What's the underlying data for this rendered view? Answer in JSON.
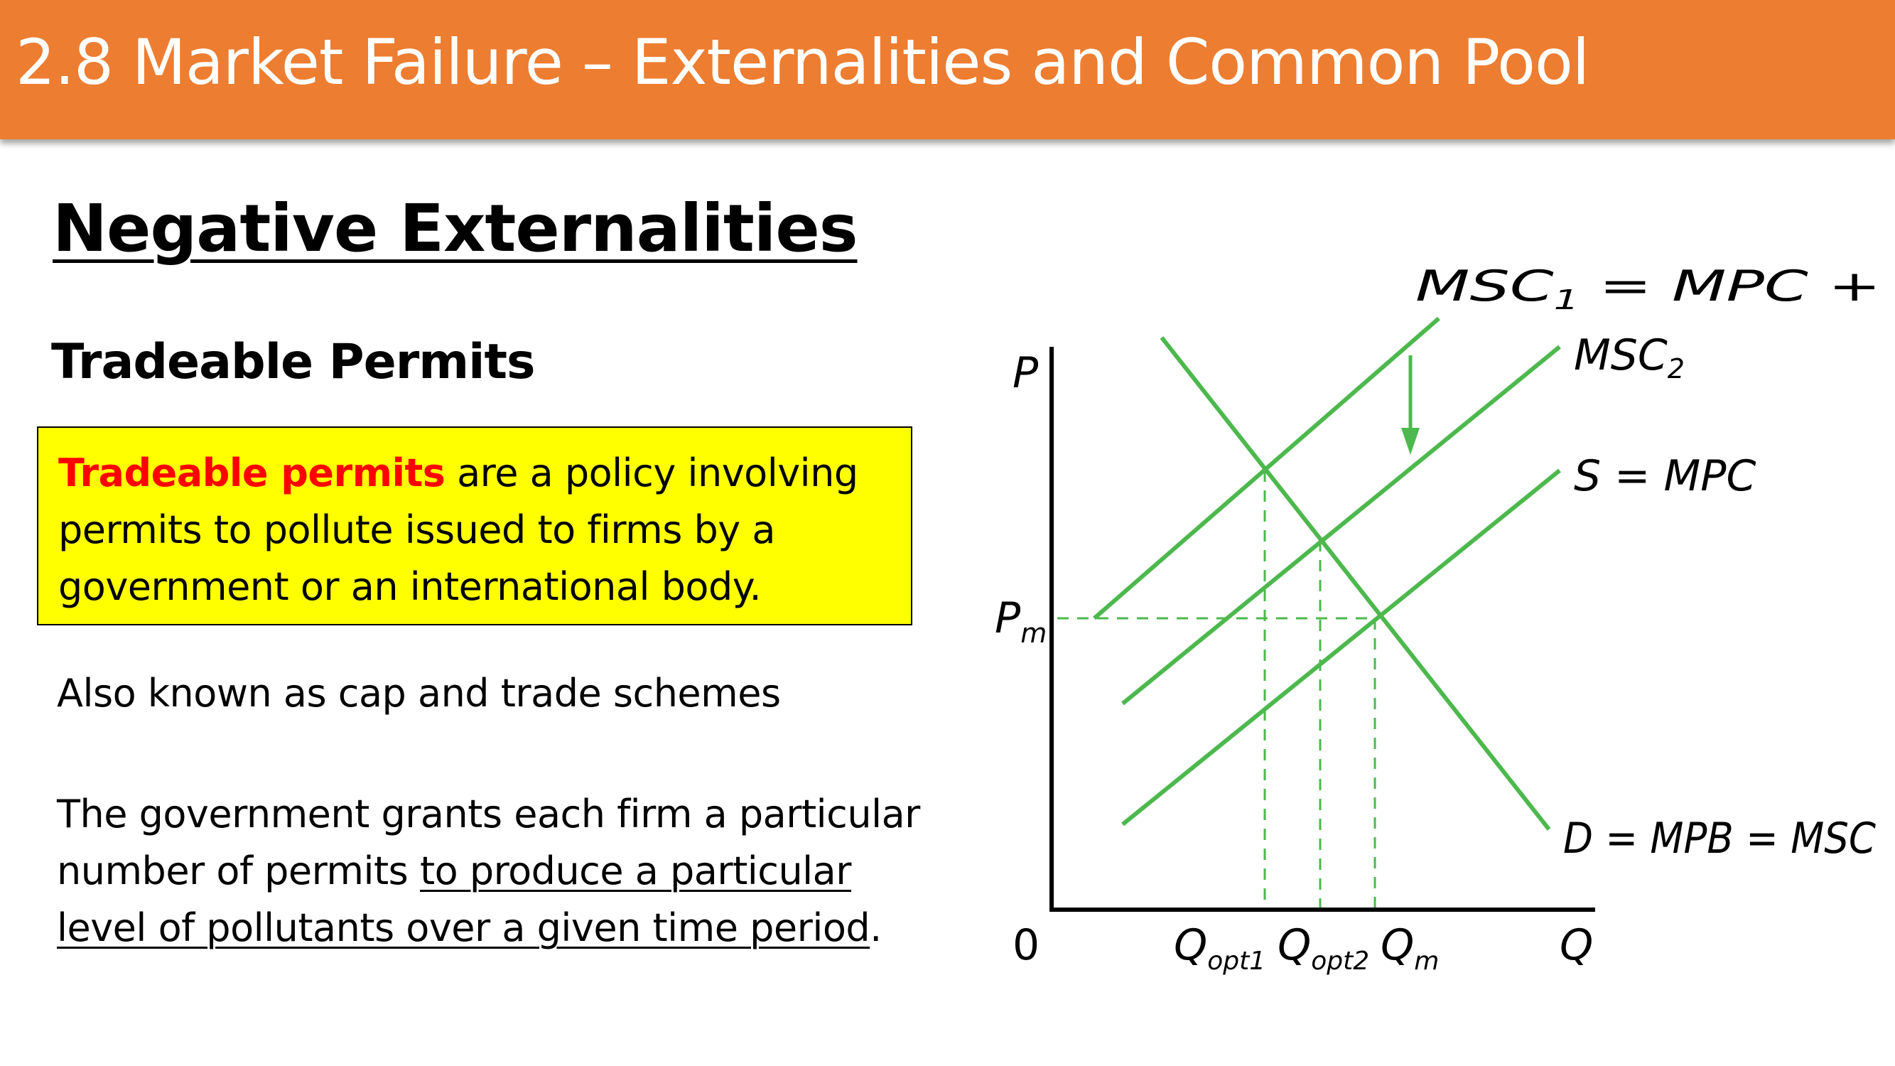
{
  "header": {
    "title": "2.8 Market Failure – Externalities and Common Pool"
  },
  "section_heading": "Negative Externalities",
  "subheading": "Tradeable Permits",
  "definition": {
    "term": "Tradeable permits",
    "rest_line1": " are a policy involving",
    "line2": "permits to pollute issued to firms by a",
    "line3": "government or an international body."
  },
  "aka_text": "Also known as cap and trade schemes",
  "grant_paragraph": {
    "line1": "The government grants each firm a particular",
    "line2_plain": "number of permits ",
    "line2_underlined": "to produce a particular",
    "line3_underlined": "level of pollutants over a given time period",
    "line3_end": "."
  },
  "diagram": {
    "axis_y_label": "P",
    "axis_x_label": "Q",
    "origin_label": "0",
    "price_label": {
      "main": "P",
      "sub": "m"
    },
    "curves": {
      "msc1": {
        "main": "MSC",
        "sub": "1",
        "rest": " = MPC + tax"
      },
      "msc2": {
        "main": "MSC",
        "sub": "2"
      },
      "supply": "S = MPC",
      "demand": "D = MPB = MSC"
    },
    "quantities": [
      {
        "main": "Q",
        "sub": "opt1"
      },
      {
        "main": "Q",
        "sub": "opt2"
      },
      {
        "main": "Q",
        "sub": "m"
      }
    ],
    "colors": {
      "curve": "#4DB84D",
      "axis": "#000000"
    }
  }
}
